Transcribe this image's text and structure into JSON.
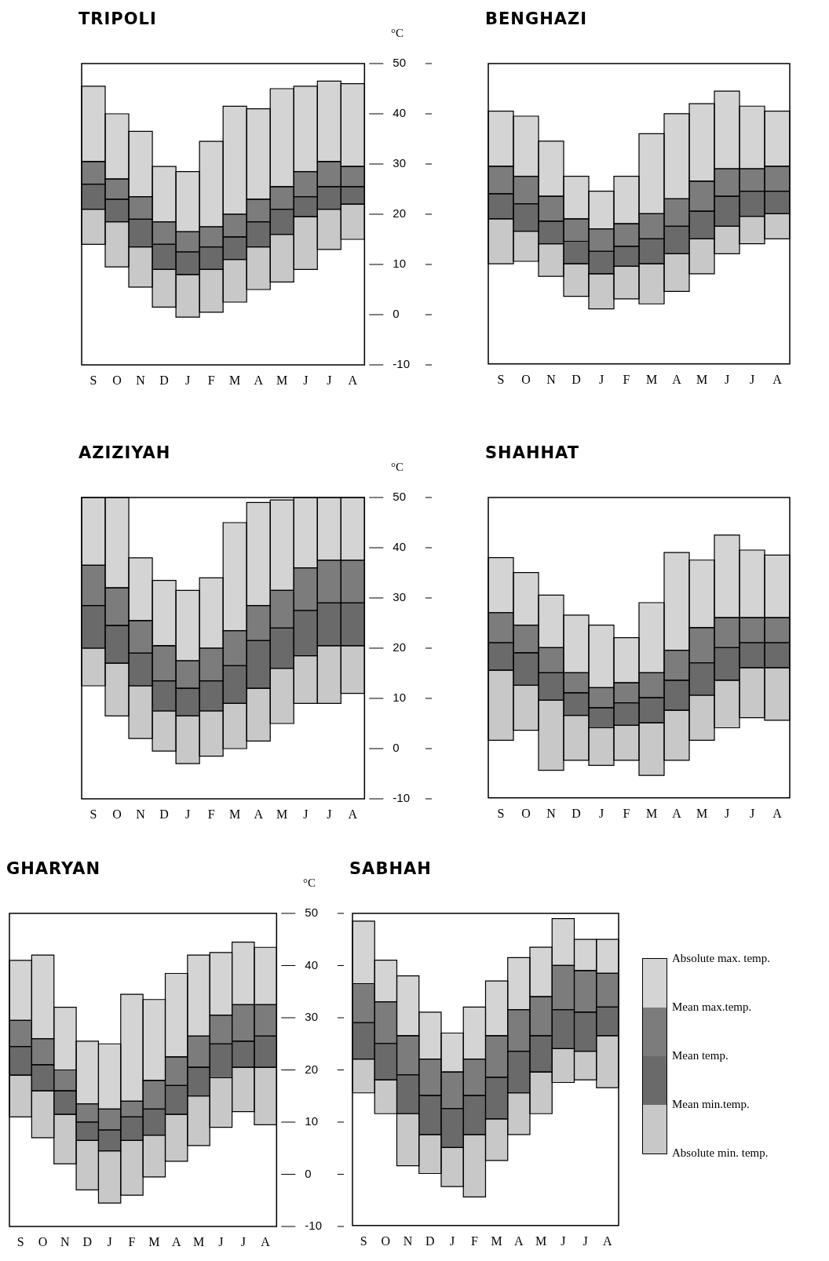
{
  "chart_data": [
    {
      "type": "bar",
      "title": "TRIPOLI",
      "ylabel": "°C",
      "categories": [
        "S",
        "O",
        "N",
        "D",
        "J",
        "F",
        "M",
        "A",
        "M",
        "J",
        "J",
        "A"
      ],
      "ylim": [
        -10,
        50
      ],
      "yticks": [
        -10,
        0,
        10,
        20,
        30,
        40,
        50
      ],
      "series": [
        {
          "color": "#c8c8c8",
          "base": [
            14,
            9.5,
            5.5,
            1.5,
            -0.5,
            0.5,
            2.5,
            5,
            6.5,
            9,
            13,
            15
          ],
          "values": [
            7,
            9,
            8,
            7.5,
            8.5,
            8.5,
            8.5,
            8.5,
            9.5,
            10.5,
            8,
            7
          ]
        },
        {
          "color": "#6a6a6a",
          "base": [
            21,
            18.5,
            13.5,
            9,
            8,
            9,
            11,
            13.5,
            16,
            19.5,
            21,
            22
          ],
          "values": [
            5,
            4.5,
            5.5,
            5,
            4.5,
            4.5,
            4.5,
            5,
            5,
            4,
            4.5,
            3.5
          ]
        },
        {
          "color": "#7c7c7c",
          "base": [
            26,
            23,
            19,
            14,
            12.5,
            13.5,
            15.5,
            18.5,
            21,
            23.5,
            25.5,
            25.5
          ],
          "values": [
            4.5,
            4,
            4.5,
            4.5,
            4,
            4,
            4.5,
            4.5,
            4.5,
            5,
            5,
            4
          ]
        },
        {
          "color": "#d4d4d4",
          "base": [
            30.5,
            27,
            23.5,
            18.5,
            16.5,
            17.5,
            20,
            23,
            25.5,
            28.5,
            30.5,
            29.5
          ],
          "values": [
            15,
            13,
            13,
            11,
            12,
            17,
            21.5,
            18,
            19.5,
            17,
            16,
            16.5
          ]
        }
      ]
    },
    {
      "type": "bar",
      "title": "BENGHAZI",
      "tick_labels": "x",
      "categories": [
        "S",
        "O",
        "N",
        "D",
        "J",
        "F",
        "M",
        "A",
        "M",
        "J",
        "J",
        "A"
      ],
      "ylim": [
        -10,
        50
      ],
      "yticks": [
        -10,
        0,
        10,
        20,
        30,
        40,
        50
      ],
      "series": [
        {
          "color": "#c8c8c8",
          "base": [
            10,
            10.5,
            7.5,
            3.5,
            1,
            3,
            2,
            4.5,
            8,
            12,
            14,
            15
          ],
          "values": [
            9,
            6,
            6.5,
            6.5,
            7,
            6.5,
            8,
            7.5,
            7,
            5.5,
            5.5,
            5
          ]
        },
        {
          "color": "#6a6a6a",
          "base": [
            19,
            16.5,
            14,
            10,
            8,
            9.5,
            10,
            12,
            15,
            17.5,
            19.5,
            20
          ],
          "values": [
            5,
            5.5,
            4.5,
            4.5,
            4.5,
            4,
            5,
            5.5,
            5.5,
            6,
            5,
            4.5
          ]
        },
        {
          "color": "#7c7c7c",
          "base": [
            24,
            22,
            18.5,
            14.5,
            12.5,
            13.5,
            15,
            17.5,
            20.5,
            23.5,
            24.5,
            24.5
          ],
          "values": [
            5.5,
            5.5,
            5,
            4.5,
            4.5,
            4.5,
            5,
            5.5,
            6,
            5.5,
            4.5,
            5
          ]
        },
        {
          "color": "#d4d4d4",
          "base": [
            29.5,
            27.5,
            23.5,
            19,
            17,
            18,
            20,
            23,
            26.5,
            29,
            29,
            29.5
          ],
          "values": [
            11,
            12,
            11,
            8.5,
            7.5,
            9.5,
            16,
            17,
            15.5,
            15.5,
            12.5,
            11
          ]
        }
      ]
    },
    {
      "type": "bar",
      "title": "AZIZIYAH",
      "ylabel": "°C",
      "categories": [
        "S",
        "O",
        "N",
        "D",
        "J",
        "F",
        "M",
        "A",
        "M",
        "J",
        "J",
        "A"
      ],
      "ylim": [
        -10,
        50
      ],
      "yticks": [
        -10,
        0,
        10,
        20,
        30,
        40,
        50
      ],
      "series": [
        {
          "color": "#c8c8c8",
          "base": [
            12.5,
            6.5,
            2,
            -0.5,
            -3,
            -1.5,
            0,
            1.5,
            5,
            9,
            9,
            11
          ],
          "values": [
            7.5,
            10.5,
            10.5,
            8,
            9.5,
            9,
            9,
            10.5,
            11,
            9.5,
            11.5,
            9.5
          ]
        },
        {
          "color": "#6a6a6a",
          "base": [
            20,
            17,
            12.5,
            7.5,
            6.5,
            7.5,
            9,
            12,
            16,
            18.5,
            20.5,
            20.5
          ],
          "values": [
            8.5,
            7.5,
            6.5,
            6,
            5.5,
            6,
            7.5,
            9.5,
            8,
            9,
            8.5,
            8.5
          ]
        },
        {
          "color": "#7c7c7c",
          "base": [
            28.5,
            24.5,
            19,
            13.5,
            12,
            13.5,
            16.5,
            21.5,
            24,
            27.5,
            29,
            29
          ],
          "values": [
            8,
            7.5,
            6.5,
            7,
            5.5,
            6.5,
            7,
            7,
            7.5,
            8.5,
            8.5,
            8.5
          ]
        },
        {
          "color": "#d4d4d4",
          "base": [
            36.5,
            32,
            25.5,
            20.5,
            17.5,
            20,
            23.5,
            28.5,
            31.5,
            36,
            37.5,
            37.5
          ],
          "values": [
            13.5,
            18,
            12.5,
            13,
            14,
            14,
            21.5,
            20.5,
            18,
            14,
            12.5,
            12.5
          ]
        }
      ]
    },
    {
      "type": "bar",
      "title": "SHAHHAT",
      "tick_labels": "x",
      "categories": [
        "S",
        "O",
        "N",
        "D",
        "J",
        "F",
        "M",
        "A",
        "M",
        "J",
        "J",
        "A"
      ],
      "ylim": [
        -10,
        50
      ],
      "yticks": [
        -10,
        0,
        10,
        20,
        30,
        40,
        50
      ],
      "series": [
        {
          "color": "#c8c8c8",
          "base": [
            1.5,
            3.5,
            -4.5,
            -2.5,
            -3.5,
            -2.5,
            -5.5,
            -2.5,
            1.5,
            4,
            6,
            5.5
          ],
          "values": [
            14,
            9,
            14,
            9,
            7.5,
            7,
            10.5,
            10,
            9,
            9.5,
            10,
            10.5
          ]
        },
        {
          "color": "#6a6a6a",
          "base": [
            15.5,
            12.5,
            9.5,
            6.5,
            4,
            4.5,
            5,
            7.5,
            10.5,
            13.5,
            16,
            16
          ],
          "values": [
            5.5,
            6.5,
            5.5,
            4.5,
            4,
            4.5,
            5,
            6,
            6.5,
            6.5,
            5,
            5
          ]
        },
        {
          "color": "#7c7c7c",
          "base": [
            21,
            19,
            15,
            11,
            8,
            9,
            10,
            13.5,
            17,
            20,
            21,
            21
          ],
          "values": [
            6,
            5.5,
            5,
            4,
            4,
            4,
            5,
            6,
            7,
            6,
            5,
            5
          ]
        },
        {
          "color": "#d4d4d4",
          "base": [
            27,
            24.5,
            20,
            15,
            12,
            13,
            15,
            19.5,
            24,
            26,
            26,
            26
          ],
          "values": [
            11,
            10.5,
            10.5,
            11.5,
            12.5,
            9,
            14,
            19.5,
            13.5,
            16.5,
            13.5,
            12.5
          ]
        }
      ]
    },
    {
      "type": "bar",
      "title": "GHARYAN",
      "ylabel": "°C",
      "categories": [
        "S",
        "O",
        "N",
        "D",
        "J",
        "F",
        "M",
        "A",
        "M",
        "J",
        "J",
        "A"
      ],
      "ylim": [
        -10,
        50
      ],
      "yticks": [
        -10,
        0,
        10,
        20,
        30,
        40,
        50
      ],
      "series": [
        {
          "color": "#c8c8c8",
          "base": [
            11,
            7,
            2,
            -3,
            -5.5,
            -4,
            -0.5,
            2.5,
            5.5,
            9,
            12,
            9.5
          ],
          "values": [
            8,
            9,
            9.5,
            9.5,
            10,
            10.5,
            8,
            9,
            9.5,
            9.5,
            8.5,
            11
          ]
        },
        {
          "color": "#6a6a6a",
          "base": [
            19,
            16,
            11.5,
            6.5,
            4.5,
            6.5,
            7.5,
            11.5,
            15,
            18.5,
            20.5,
            20.5
          ],
          "values": [
            5.5,
            5,
            4.5,
            3.5,
            4,
            4.5,
            5,
            5.5,
            5.5,
            6.5,
            5,
            6
          ]
        },
        {
          "color": "#7c7c7c",
          "base": [
            24.5,
            21,
            16,
            10,
            8.5,
            11,
            12.5,
            17,
            20.5,
            25,
            25.5,
            26.5
          ],
          "values": [
            5,
            5,
            4,
            3.5,
            4,
            3,
            5.5,
            5.5,
            6,
            5.5,
            7,
            6
          ]
        },
        {
          "color": "#d4d4d4",
          "base": [
            29.5,
            26,
            20,
            13.5,
            12.5,
            14,
            18,
            22.5,
            26.5,
            30.5,
            32.5,
            32.5
          ],
          "values": [
            11.5,
            16,
            12,
            12,
            12.5,
            20.5,
            15.5,
            16,
            15.5,
            12,
            12,
            11
          ]
        }
      ]
    },
    {
      "type": "bar",
      "title": "SABHAH",
      "tick_labels": "x",
      "categories": [
        "S",
        "O",
        "N",
        "D",
        "J",
        "F",
        "M",
        "A",
        "M",
        "J",
        "J",
        "A"
      ],
      "ylim": [
        -10,
        50
      ],
      "yticks": [
        -10,
        0,
        10,
        20,
        30,
        40,
        50
      ],
      "series": [
        {
          "color": "#c8c8c8",
          "base": [
            15.5,
            11.5,
            1.5,
            0,
            -2.5,
            -4.5,
            2.5,
            7.5,
            11.5,
            17.5,
            18,
            16.5
          ],
          "values": [
            6.5,
            6.5,
            10,
            7.5,
            7.5,
            12,
            8,
            8,
            8,
            6.5,
            5.5,
            10
          ]
        },
        {
          "color": "#6a6a6a",
          "base": [
            22,
            18,
            11.5,
            7.5,
            5,
            7.5,
            10.5,
            15.5,
            19.5,
            24,
            23.5,
            26.5
          ],
          "values": [
            7,
            7,
            7.5,
            7.5,
            7.5,
            7.5,
            8,
            8,
            7,
            7.5,
            7.5,
            5.5
          ]
        },
        {
          "color": "#7c7c7c",
          "base": [
            29,
            25,
            19,
            15,
            12.5,
            15,
            18.5,
            23.5,
            26.5,
            31.5,
            31,
            32
          ],
          "values": [
            7.5,
            8,
            7.5,
            7,
            7,
            7,
            8,
            8,
            7.5,
            8.5,
            8,
            6.5
          ]
        },
        {
          "color": "#d4d4d4",
          "base": [
            36.5,
            33,
            26.5,
            22,
            19.5,
            22,
            26.5,
            31.5,
            34,
            40,
            39,
            38.5
          ],
          "values": [
            12,
            8,
            11.5,
            9,
            7.5,
            10,
            10.5,
            10,
            9.5,
            9,
            6,
            6.5
          ]
        }
      ],
      "annotations": [
        "Absolute max. temp.",
        "Mean max.temp.",
        "Mean  temp.",
        "Mean min.temp.",
        "Absolute min. temp."
      ]
    }
  ]
}
